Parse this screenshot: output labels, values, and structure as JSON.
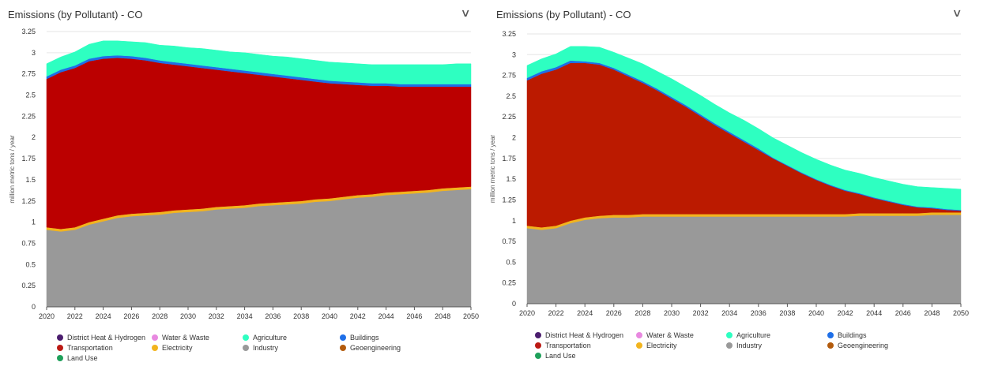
{
  "panels": [
    {
      "title": "Emissions (by Pollutant) - CO",
      "chevron_icon": "chevron-down-icon"
    },
    {
      "title": "Emissions (by Pollutant) - CO",
      "chevron_icon": "chevron-down-icon"
    }
  ],
  "legend": [
    {
      "label": "District Heat & Hydrogen",
      "color": "#4b1d6e"
    },
    {
      "label": "Water & Waste",
      "color": "#e889e0"
    },
    {
      "label": "Agriculture",
      "color": "#2effc1"
    },
    {
      "label": "Buildings",
      "color": "#1e6fe8"
    },
    {
      "label": "Transportation",
      "color": "#bb1a14"
    },
    {
      "label": "Electricity",
      "color": "#f2b41e"
    },
    {
      "label": "Industry",
      "color": "#999999"
    },
    {
      "label": "Geoengineering",
      "color": "#b35b0c"
    },
    {
      "label": "Land Use",
      "color": "#1fa05a"
    }
  ],
  "chart_data": [
    {
      "type": "area",
      "title": "Emissions (by Pollutant) - CO",
      "ylabel": "million metric tons / year",
      "ylim": [
        0,
        3.25
      ],
      "xlim": [
        2020,
        2050
      ],
      "x_ticks": [
        "2020",
        "2022",
        "2024",
        "2026",
        "2028",
        "2030",
        "2032",
        "2034",
        "2036",
        "2038",
        "2040",
        "2042",
        "2044",
        "2046",
        "2048",
        "2050"
      ],
      "y_ticks": [
        "0",
        "0.25",
        "0.5",
        "0.75",
        "1",
        "1.25",
        "1.5",
        "1.75",
        "2",
        "2.25",
        "2.5",
        "2.75",
        "3",
        "3.25"
      ],
      "x": [
        2020,
        2021,
        2022,
        2023,
        2024,
        2025,
        2026,
        2027,
        2028,
        2029,
        2030,
        2031,
        2032,
        2033,
        2034,
        2035,
        2036,
        2037,
        2038,
        2039,
        2040,
        2041,
        2042,
        2043,
        2044,
        2045,
        2046,
        2047,
        2048,
        2049,
        2050
      ],
      "stack_order": [
        "Industry",
        "Electricity",
        "Transportation",
        "Buildings",
        "Agriculture"
      ],
      "series": [
        {
          "name": "Industry",
          "color": "#999999",
          "values": [
            0.91,
            0.89,
            0.91,
            0.97,
            1.01,
            1.05,
            1.07,
            1.08,
            1.09,
            1.11,
            1.12,
            1.13,
            1.15,
            1.16,
            1.17,
            1.19,
            1.2,
            1.21,
            1.22,
            1.24,
            1.25,
            1.27,
            1.29,
            1.3,
            1.32,
            1.33,
            1.34,
            1.35,
            1.37,
            1.38,
            1.39
          ]
        },
        {
          "name": "Electricity",
          "color": "#f2b41e",
          "values": [
            0.03,
            0.03,
            0.03,
            0.03,
            0.03,
            0.03,
            0.03,
            0.03,
            0.03,
            0.03,
            0.03,
            0.03,
            0.03,
            0.03,
            0.03,
            0.03,
            0.03,
            0.03,
            0.03,
            0.03,
            0.03,
            0.03,
            0.03,
            0.03,
            0.03,
            0.03,
            0.03,
            0.03,
            0.03,
            0.03,
            0.03
          ]
        },
        {
          "name": "Transportation",
          "color": "#bb0000",
          "values": [
            1.75,
            1.85,
            1.88,
            1.9,
            1.89,
            1.86,
            1.83,
            1.8,
            1.76,
            1.72,
            1.69,
            1.66,
            1.62,
            1.59,
            1.56,
            1.52,
            1.49,
            1.46,
            1.43,
            1.39,
            1.36,
            1.33,
            1.3,
            1.28,
            1.26,
            1.24,
            1.23,
            1.22,
            1.2,
            1.19,
            1.18
          ]
        },
        {
          "name": "Buildings",
          "color": "#1e6fe8",
          "values": [
            0.03,
            0.03,
            0.03,
            0.03,
            0.03,
            0.03,
            0.03,
            0.03,
            0.03,
            0.03,
            0.03,
            0.03,
            0.03,
            0.03,
            0.03,
            0.03,
            0.03,
            0.03,
            0.03,
            0.03,
            0.03,
            0.03,
            0.03,
            0.03,
            0.03,
            0.03,
            0.03,
            0.03,
            0.03,
            0.03,
            0.03
          ]
        },
        {
          "name": "Agriculture",
          "color": "#2effc1",
          "values": [
            0.15,
            0.15,
            0.16,
            0.17,
            0.18,
            0.17,
            0.17,
            0.18,
            0.18,
            0.19,
            0.19,
            0.2,
            0.2,
            0.2,
            0.21,
            0.21,
            0.21,
            0.22,
            0.22,
            0.22,
            0.22,
            0.22,
            0.22,
            0.22,
            0.22,
            0.23,
            0.23,
            0.23,
            0.23,
            0.24,
            0.24
          ]
        }
      ]
    },
    {
      "type": "area",
      "title": "Emissions (by Pollutant) - CO",
      "ylabel": "million metric tons / year",
      "ylim": [
        0,
        3.25
      ],
      "xlim": [
        2020,
        2050
      ],
      "x_ticks": [
        "2020",
        "2022",
        "2024",
        "2026",
        "2028",
        "2030",
        "2032",
        "2034",
        "2036",
        "2038",
        "2040",
        "2042",
        "2044",
        "2046",
        "2048",
        "2050"
      ],
      "y_ticks": [
        "0",
        "0.25",
        "0.5",
        "0.75",
        "1",
        "1.25",
        "1.5",
        "1.75",
        "2",
        "2.25",
        "2.5",
        "2.75",
        "3",
        "3.25"
      ],
      "x": [
        2020,
        2021,
        2022,
        2023,
        2024,
        2025,
        2026,
        2027,
        2028,
        2029,
        2030,
        2031,
        2032,
        2033,
        2034,
        2035,
        2036,
        2037,
        2038,
        2039,
        2040,
        2041,
        2042,
        2043,
        2044,
        2045,
        2046,
        2047,
        2048,
        2049,
        2050
      ],
      "stack_order": [
        "Industry",
        "Electricity",
        "Transportation",
        "Buildings",
        "Agriculture"
      ],
      "series": [
        {
          "name": "Industry",
          "color": "#999999",
          "values": [
            0.91,
            0.89,
            0.91,
            0.97,
            1.01,
            1.03,
            1.04,
            1.04,
            1.05,
            1.05,
            1.05,
            1.05,
            1.05,
            1.05,
            1.05,
            1.05,
            1.05,
            1.05,
            1.05,
            1.05,
            1.05,
            1.05,
            1.05,
            1.06,
            1.06,
            1.06,
            1.06,
            1.06,
            1.07,
            1.07,
            1.07
          ]
        },
        {
          "name": "Electricity",
          "color": "#f2b41e",
          "values": [
            0.03,
            0.03,
            0.03,
            0.03,
            0.03,
            0.03,
            0.03,
            0.03,
            0.03,
            0.03,
            0.03,
            0.03,
            0.03,
            0.03,
            0.03,
            0.03,
            0.03,
            0.03,
            0.03,
            0.03,
            0.03,
            0.03,
            0.03,
            0.03,
            0.03,
            0.03,
            0.03,
            0.03,
            0.03,
            0.03,
            0.03
          ]
        },
        {
          "name": "Transportation",
          "color": "#bb1a00",
          "values": [
            1.75,
            1.85,
            1.88,
            1.9,
            1.86,
            1.82,
            1.75,
            1.67,
            1.58,
            1.49,
            1.39,
            1.29,
            1.18,
            1.07,
            0.97,
            0.87,
            0.77,
            0.67,
            0.58,
            0.49,
            0.41,
            0.34,
            0.28,
            0.23,
            0.18,
            0.14,
            0.1,
            0.07,
            0.05,
            0.03,
            0.02
          ]
        },
        {
          "name": "Buildings",
          "color": "#1e6fe8",
          "values": [
            0.03,
            0.03,
            0.03,
            0.03,
            0.02,
            0.02,
            0.02,
            0.02,
            0.02,
            0.02,
            0.02,
            0.02,
            0.02,
            0.02,
            0.02,
            0.02,
            0.02,
            0.01,
            0.01,
            0.01,
            0.01,
            0.01,
            0.01,
            0.01,
            0.01,
            0.01,
            0.01,
            0.01,
            0.01,
            0.01,
            0.01
          ]
        },
        {
          "name": "Agriculture",
          "color": "#2effc1",
          "values": [
            0.15,
            0.15,
            0.16,
            0.17,
            0.18,
            0.19,
            0.19,
            0.2,
            0.21,
            0.21,
            0.22,
            0.22,
            0.23,
            0.23,
            0.23,
            0.24,
            0.24,
            0.24,
            0.24,
            0.24,
            0.24,
            0.24,
            0.24,
            0.24,
            0.24,
            0.24,
            0.24,
            0.24,
            0.24,
            0.25,
            0.25
          ]
        }
      ]
    }
  ]
}
